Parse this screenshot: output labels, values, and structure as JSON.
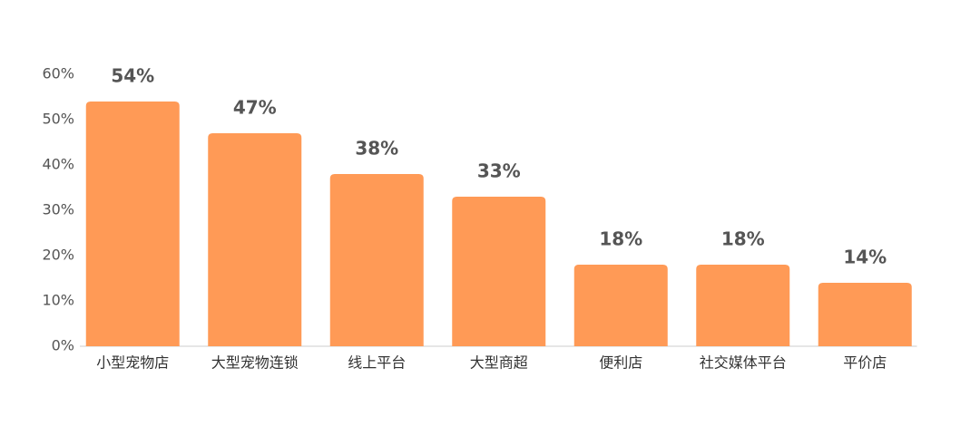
{
  "chart_data": {
    "type": "bar",
    "categories": [
      "小型宠物店",
      "大型宠物连锁",
      "线上平台",
      "大型商超",
      "便利店",
      "社交媒体平台",
      "平价店"
    ],
    "values": [
      54,
      47,
      38,
      33,
      18,
      18,
      14
    ],
    "value_labels": [
      "54%",
      "47%",
      "38%",
      "33%",
      "18%",
      "18%",
      "14%"
    ],
    "color": "#ff9a56",
    "ylim": [
      0,
      60
    ],
    "yticks": [
      {
        "value": 0,
        "label": "0%"
      },
      {
        "value": 10,
        "label": "10%"
      },
      {
        "value": 20,
        "label": "20%"
      },
      {
        "value": 30,
        "label": "30%"
      },
      {
        "value": 40,
        "label": "40%"
      },
      {
        "value": 50,
        "label": "50%"
      },
      {
        "value": 60,
        "label": "60%"
      }
    ],
    "grid": false
  }
}
